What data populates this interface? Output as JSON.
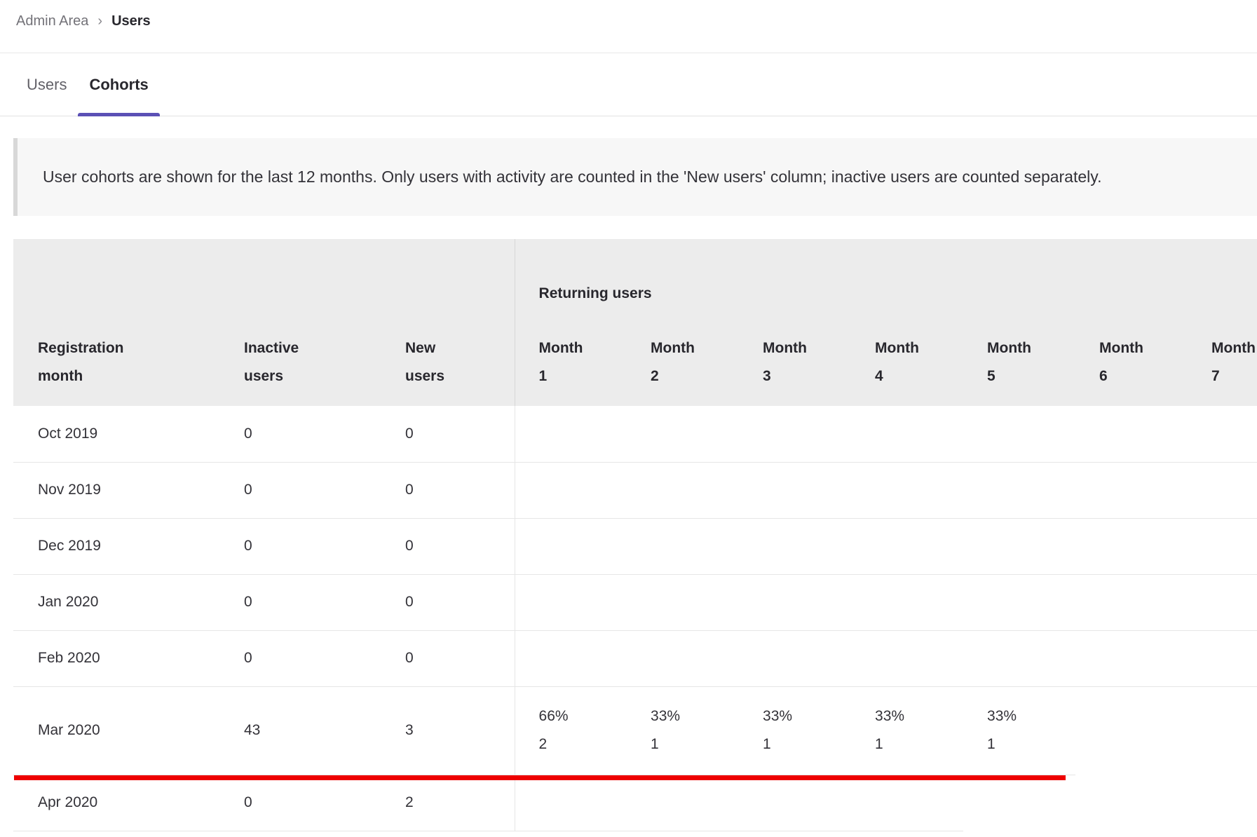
{
  "breadcrumb": {
    "separator": "›",
    "parent": "Admin Area",
    "current": "Users"
  },
  "tabs": [
    {
      "label": "Users",
      "active": false
    },
    {
      "label": "Cohorts",
      "active": true
    }
  ],
  "banner": {
    "text": "User cohorts are shown for the last 12 months. Only users with activity are counted in the 'New users' column; inactive users are counted separately."
  },
  "table": {
    "group_header": "Returning users",
    "columns": [
      "Registration month",
      "Inactive users",
      "New users"
    ],
    "month_columns": [
      "Month 1",
      "Month 2",
      "Month 3",
      "Month 4",
      "Month 5",
      "Month 6",
      "Month 7"
    ],
    "rows": [
      {
        "registration_month": "Oct 2019",
        "inactive_users": "0",
        "new_users": "0",
        "month_cells": 7,
        "returning": []
      },
      {
        "registration_month": "Nov 2019",
        "inactive_users": "0",
        "new_users": "0",
        "month_cells": 7,
        "returning": []
      },
      {
        "registration_month": "Dec 2019",
        "inactive_users": "0",
        "new_users": "0",
        "month_cells": 7,
        "returning": []
      },
      {
        "registration_month": "Jan 2020",
        "inactive_users": "0",
        "new_users": "0",
        "month_cells": 7,
        "returning": []
      },
      {
        "registration_month": "Feb 2020",
        "inactive_users": "0",
        "new_users": "0",
        "month_cells": 7,
        "returning": []
      },
      {
        "registration_month": "Mar 2020",
        "inactive_users": "43",
        "new_users": "3",
        "month_cells": 5,
        "tall": true,
        "returning": [
          {
            "percent": "66%",
            "count": "2"
          },
          {
            "percent": "33%",
            "count": "1"
          },
          {
            "percent": "33%",
            "count": "1"
          },
          {
            "percent": "33%",
            "count": "1"
          },
          {
            "percent": "33%",
            "count": "1"
          }
        ]
      },
      {
        "registration_month": "Apr 2020",
        "inactive_users": "0",
        "new_users": "2",
        "month_cells": 4,
        "returning": []
      }
    ]
  },
  "annotation": {
    "type": "horizontal-line",
    "color": "#ee0000"
  },
  "colors": {
    "accent_purple": "#5b50b5",
    "header_background": "#ececec",
    "banner_background": "#f7f7f7",
    "row_border": "#e6e6e6",
    "muted_text": "#737278",
    "dark_text": "#28272d"
  }
}
